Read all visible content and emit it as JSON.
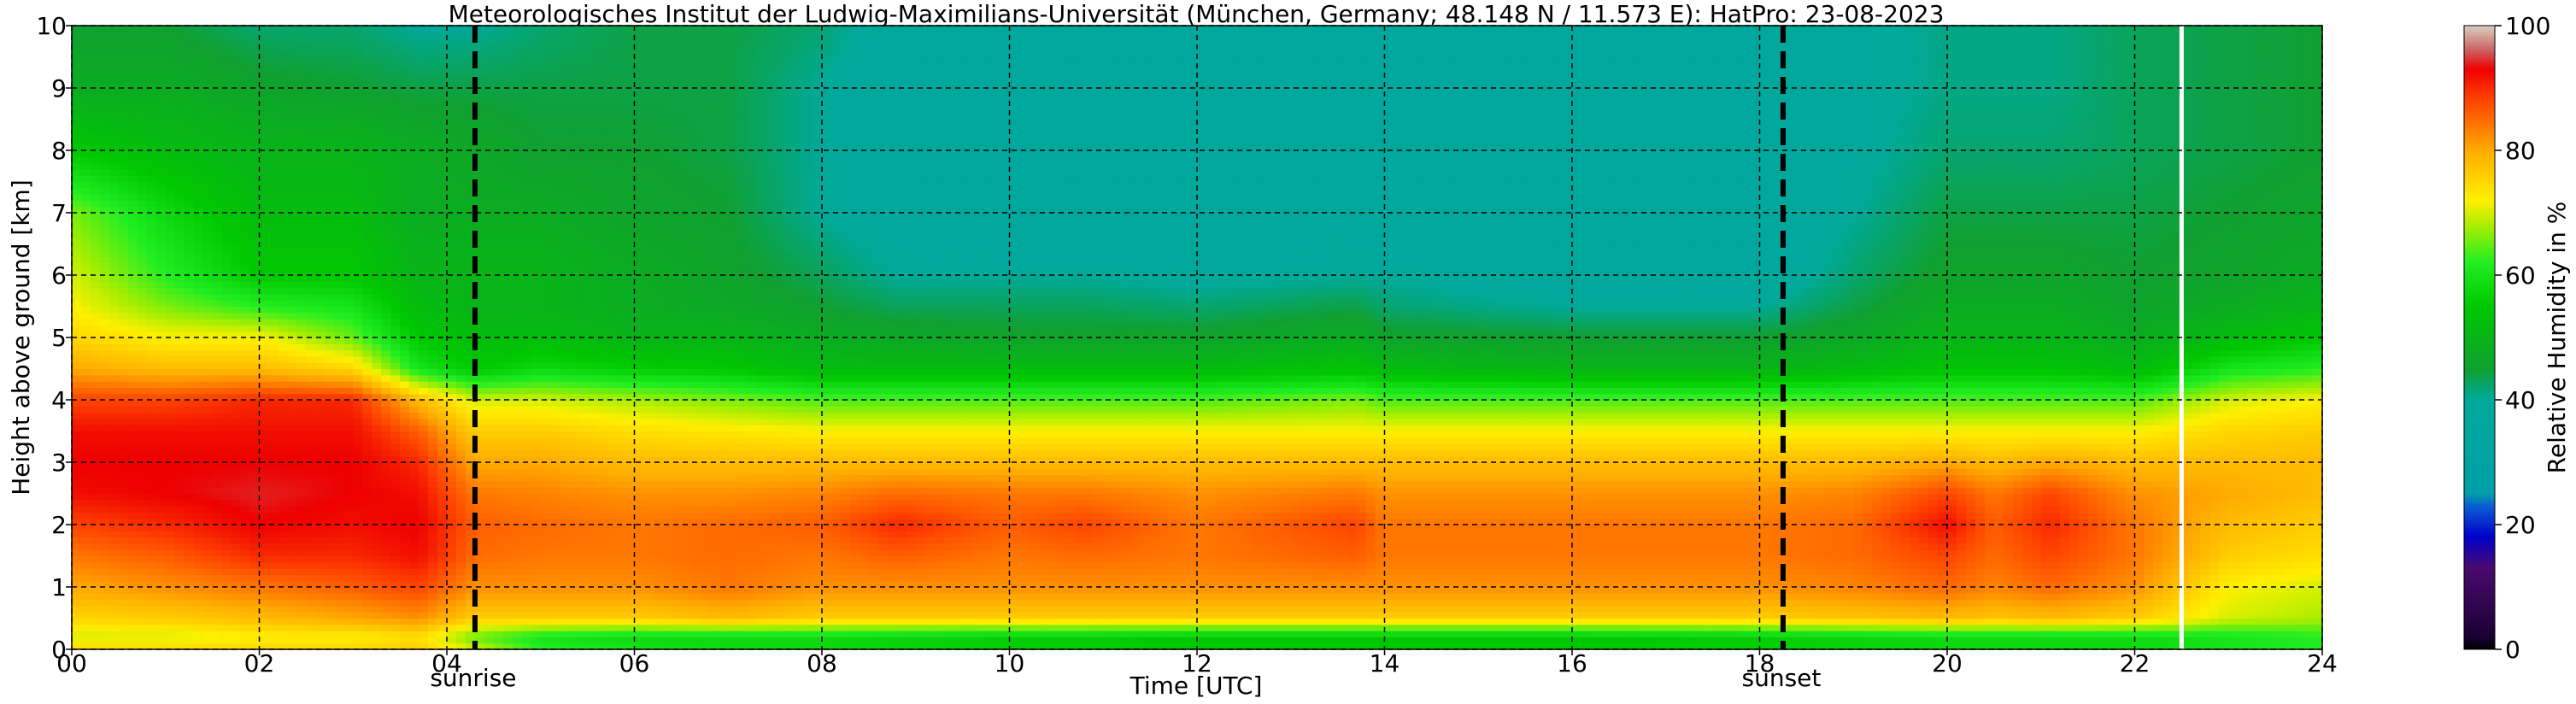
{
  "chart_data": {
    "type": "heatmap",
    "title": "Meteorologisches Institut der Ludwig-Maximilians-Universität (München, Germany; 48.148 N / 11.573 E):    HatPro: 23-08-2023",
    "xlabel": "Time [UTC]",
    "ylabel": "Height above ground [km]",
    "colorbar_label": "Relative Humidity in %",
    "xlim": [
      0,
      24
    ],
    "ylim": [
      0,
      10
    ],
    "x_ticks": [
      0,
      2,
      4,
      6,
      8,
      10,
      12,
      14,
      16,
      18,
      20,
      22,
      24
    ],
    "x_tick_labels": [
      "00",
      "02",
      "04",
      "06",
      "08",
      "10",
      "12",
      "14",
      "16",
      "18",
      "20",
      "22",
      "24"
    ],
    "y_ticks": [
      0,
      1,
      2,
      3,
      4,
      5,
      6,
      7,
      8,
      9,
      10
    ],
    "y_tick_labels": [
      "0",
      "1",
      "2",
      "3",
      "4",
      "5",
      "6",
      "7",
      "8",
      "9",
      "10"
    ],
    "colorbar_range": [
      0,
      100
    ],
    "colorbar_ticks": [
      0,
      20,
      40,
      60,
      80,
      100
    ],
    "colorbar_tick_labels": [
      "0",
      "20",
      "40",
      "60",
      "80",
      "100"
    ],
    "grid": true,
    "annotations": [
      {
        "x": 4.3,
        "label": "sunrise"
      },
      {
        "x": 18.25,
        "label": "sunset"
      }
    ],
    "missing_data_at": 22.5,
    "colormap_stops": [
      {
        "v": 0,
        "color": "#000000"
      },
      {
        "v": 2,
        "color": "#1a0033"
      },
      {
        "v": 13,
        "color": "#4b0a6e"
      },
      {
        "v": 18,
        "color": "#0000cc"
      },
      {
        "v": 23,
        "color": "#0a5fd0"
      },
      {
        "v": 25,
        "color": "#00a0a8"
      },
      {
        "v": 40,
        "color": "#00a99a"
      },
      {
        "v": 45,
        "color": "#10a030"
      },
      {
        "v": 55,
        "color": "#00c800"
      },
      {
        "v": 62,
        "color": "#22ee22"
      },
      {
        "v": 68,
        "color": "#aaee00"
      },
      {
        "v": 72,
        "color": "#fff000"
      },
      {
        "v": 80,
        "color": "#ffaa00"
      },
      {
        "v": 88,
        "color": "#ff4400"
      },
      {
        "v": 93,
        "color": "#ee0000"
      },
      {
        "v": 96,
        "color": "#cc6060"
      },
      {
        "v": 100,
        "color": "#d8d0c0"
      }
    ],
    "profile_heights_km": [
      0,
      0.2,
      0.5,
      1,
      1.5,
      2,
      2.5,
      3,
      3.5,
      4,
      4.5,
      5,
      5.5,
      6,
      7,
      8,
      9,
      10
    ],
    "profiles": [
      {
        "t": 0,
        "rh": [
          75,
          70,
          75,
          80,
          84,
          88,
          92,
          93,
          92,
          88,
          80,
          75,
          72,
          70,
          66,
          55,
          48,
          45
        ]
      },
      {
        "t": 1,
        "rh": [
          75,
          70,
          76,
          82,
          86,
          90,
          93,
          93,
          92,
          88,
          78,
          72,
          66,
          62,
          58,
          52,
          48,
          45
        ]
      },
      {
        "t": 2,
        "rh": [
          75,
          72,
          78,
          84,
          90,
          93,
          94,
          93,
          92,
          90,
          78,
          72,
          62,
          55,
          52,
          50,
          46,
          42
        ]
      },
      {
        "t": 3,
        "rh": [
          75,
          72,
          80,
          86,
          90,
          92,
          93,
          93,
          92,
          90,
          75,
          65,
          60,
          55,
          52,
          50,
          45,
          42
        ]
      },
      {
        "t": 3.7,
        "rh": [
          76,
          74,
          82,
          88,
          92,
          93,
          92,
          90,
          86,
          78,
          60,
          55,
          52,
          50,
          48,
          48,
          44,
          40
        ]
      },
      {
        "t": 4.3,
        "rh": [
          70,
          65,
          76,
          82,
          85,
          86,
          84,
          80,
          76,
          70,
          55,
          52,
          50,
          50,
          48,
          47,
          44,
          40
        ]
      },
      {
        "t": 5,
        "rh": [
          62,
          60,
          76,
          82,
          84,
          85,
          83,
          80,
          76,
          70,
          58,
          52,
          50,
          50,
          48,
          45,
          44,
          42
        ]
      },
      {
        "t": 6,
        "rh": [
          60,
          58,
          76,
          82,
          84,
          84,
          82,
          78,
          74,
          68,
          56,
          50,
          48,
          48,
          46,
          45,
          44,
          44
        ]
      },
      {
        "t": 7,
        "rh": [
          58,
          58,
          78,
          84,
          85,
          85,
          82,
          78,
          73,
          66,
          55,
          50,
          47,
          46,
          45,
          44,
          44,
          44
        ]
      },
      {
        "t": 8,
        "rh": [
          58,
          58,
          76,
          82,
          84,
          86,
          83,
          78,
          72,
          64,
          52,
          48,
          45,
          43,
          40,
          40,
          40,
          42
        ]
      },
      {
        "t": 8.8,
        "rh": [
          57,
          57,
          76,
          82,
          86,
          90,
          85,
          78,
          72,
          64,
          52,
          47,
          43,
          40,
          38,
          37,
          37,
          38
        ]
      },
      {
        "t": 10,
        "rh": [
          56,
          56,
          76,
          82,
          84,
          86,
          84,
          78,
          72,
          64,
          52,
          46,
          43,
          40,
          37,
          37,
          37,
          37
        ]
      },
      {
        "t": 10.8,
        "rh": [
          56,
          56,
          76,
          82,
          85,
          88,
          84,
          78,
          72,
          64,
          52,
          46,
          43,
          40,
          37,
          37,
          37,
          37
        ]
      },
      {
        "t": 12,
        "rh": [
          55,
          55,
          76,
          82,
          84,
          84,
          82,
          78,
          72,
          64,
          52,
          46,
          42,
          39,
          37,
          37,
          37,
          37
        ]
      },
      {
        "t": 13.7,
        "rh": [
          55,
          55,
          76,
          82,
          86,
          88,
          84,
          78,
          72,
          66,
          54,
          48,
          44,
          40,
          38,
          37,
          37,
          37
        ]
      },
      {
        "t": 14,
        "rh": [
          55,
          55,
          76,
          82,
          84,
          84,
          82,
          78,
          72,
          64,
          52,
          46,
          42,
          40,
          38,
          37,
          37,
          37
        ]
      },
      {
        "t": 16,
        "rh": [
          55,
          55,
          76,
          82,
          84,
          84,
          82,
          78,
          72,
          64,
          50,
          45,
          40,
          37,
          37,
          37,
          37,
          37
        ]
      },
      {
        "t": 18,
        "rh": [
          56,
          56,
          76,
          82,
          84,
          84,
          82,
          78,
          72,
          64,
          50,
          45,
          40,
          37,
          37,
          37,
          37,
          37
        ]
      },
      {
        "t": 19,
        "rh": [
          57,
          57,
          77,
          83,
          85,
          85,
          83,
          78,
          72,
          64,
          52,
          47,
          44,
          42,
          40,
          39,
          39,
          39
        ]
      },
      {
        "t": 20,
        "rh": [
          58,
          58,
          78,
          85,
          88,
          92,
          88,
          80,
          72,
          64,
          54,
          50,
          48,
          46,
          44,
          42,
          41,
          41
        ]
      },
      {
        "t": 20.5,
        "rh": [
          58,
          58,
          77,
          83,
          85,
          86,
          84,
          78,
          72,
          64,
          54,
          50,
          48,
          46,
          44,
          42,
          41,
          41
        ]
      },
      {
        "t": 21.1,
        "rh": [
          58,
          58,
          78,
          85,
          88,
          90,
          88,
          80,
          72,
          64,
          54,
          50,
          48,
          46,
          44,
          42,
          41,
          41
        ]
      },
      {
        "t": 22,
        "rh": [
          58,
          58,
          76,
          82,
          84,
          84,
          82,
          78,
          72,
          64,
          52,
          48,
          46,
          45,
          44,
          43,
          43,
          43
        ]
      },
      {
        "t": 23,
        "rh": [
          60,
          60,
          70,
          72,
          76,
          78,
          80,
          78,
          75,
          70,
          60,
          52,
          48,
          46,
          45,
          44,
          44,
          44
        ]
      },
      {
        "t": 24,
        "rh": [
          62,
          62,
          68,
          70,
          74,
          76,
          78,
          78,
          76,
          72,
          62,
          55,
          50,
          48,
          46,
          45,
          45,
          45
        ]
      }
    ]
  }
}
